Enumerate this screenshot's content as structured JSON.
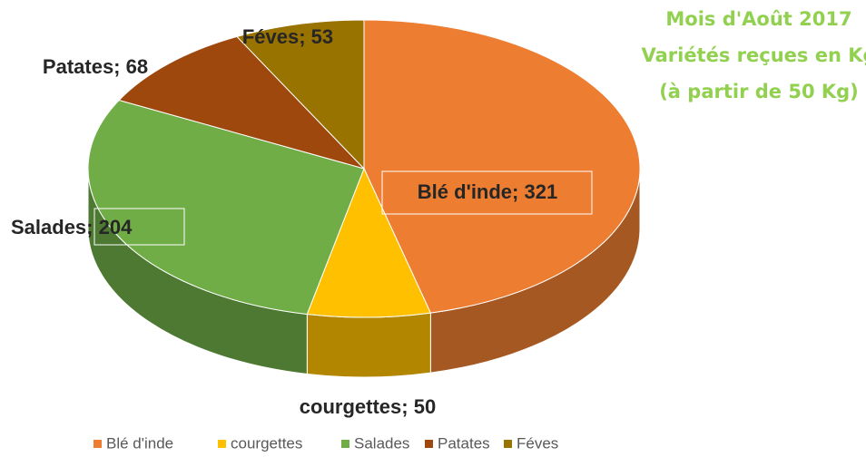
{
  "chart_data": {
    "type": "pie",
    "title": [
      "Mois d'Août 2017",
      "Variétés reçues en Kg",
      "(à partir de 50 Kg)"
    ],
    "categories": [
      "Blé d'inde",
      "courgettes",
      "Salades",
      "Patates",
      "Féves"
    ],
    "values": [
      321,
      50,
      204,
      68,
      53
    ],
    "value_labels": [
      "Blé d'inde; 321",
      "courgettes; 50",
      "Salades; 204",
      "Patates; 68",
      "Féves; 53"
    ],
    "colors": [
      "#ed7d31",
      "#ffc000",
      "#70ad47",
      "#9e480e",
      "#997300"
    ],
    "legend": "bottom"
  }
}
